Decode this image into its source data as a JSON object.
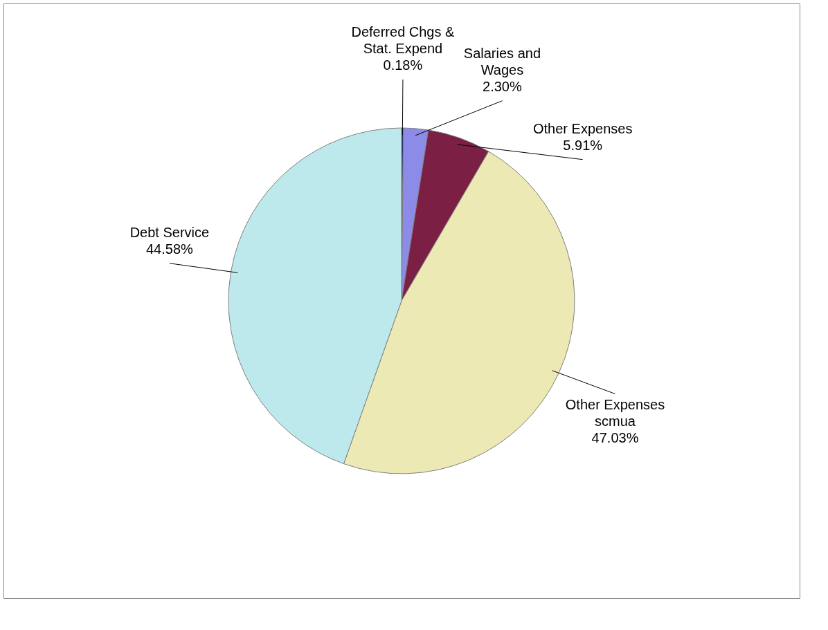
{
  "chart_data": {
    "type": "pie",
    "categories": [
      "Deferred Chgs & Stat. Expend",
      "Salaries and Wages",
      "Other Expenses",
      "Other Expenses scmua",
      "Debt Service"
    ],
    "values": [
      0.18,
      2.3,
      5.91,
      47.03,
      44.58
    ],
    "value_labels": [
      "0.18%",
      "2.30%",
      "5.91%",
      "47.03%",
      "44.58%"
    ],
    "colors": [
      "#2a2a6e",
      "#8c8ce8",
      "#7b1f45",
      "#ece9b5",
      "#bde9ec"
    ],
    "legend": false
  }
}
